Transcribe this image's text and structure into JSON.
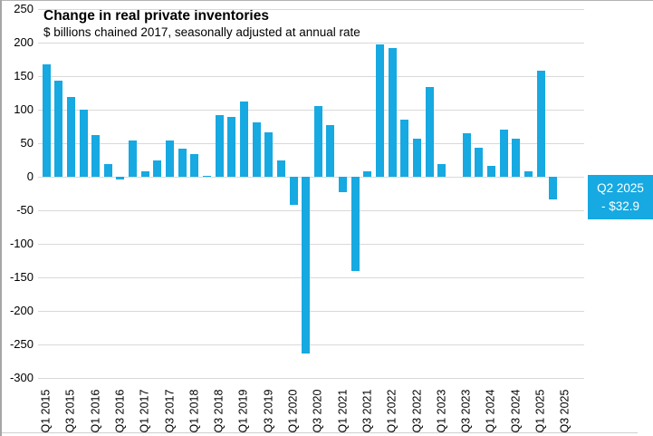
{
  "chart": {
    "title": "Change in real private inventories",
    "subtitle": "$ billions chained 2017, seasonally adjusted at annual rate",
    "callout": {
      "line1": "Q2 2025",
      "line2": "- $32.9"
    }
  },
  "chart_data": {
    "type": "bar",
    "title": "Change in real private inventories",
    "subtitle": "$ billions chained 2017, seasonally adjusted at annual rate",
    "ylabel": "$ billions chained 2017, seasonally adjusted at annual rate",
    "xlabel": "",
    "ylim": [
      -300,
      250
    ],
    "y_ticks": [
      250,
      200,
      150,
      100,
      50,
      0,
      -50,
      -100,
      -150,
      -200,
      -250,
      -300
    ],
    "grid": "horizontal-gridlines-on",
    "legend": "none",
    "bar_color": "#17a9e1",
    "gridline_color": "#d9d9d9",
    "categories": [
      "Q1 2015",
      "Q2 2015",
      "Q3 2015",
      "Q4 2015",
      "Q1 2016",
      "Q2 2016",
      "Q3 2016",
      "Q4 2016",
      "Q1 2017",
      "Q2 2017",
      "Q3 2017",
      "Q4 2017",
      "Q1 2018",
      "Q2 2018",
      "Q3 2018",
      "Q4 2018",
      "Q1 2019",
      "Q2 2019",
      "Q3 2019",
      "Q4 2019",
      "Q1 2020",
      "Q2 2020",
      "Q3 2020",
      "Q4 2020",
      "Q1 2021",
      "Q2 2021",
      "Q3 2021",
      "Q4 2021",
      "Q1 2022",
      "Q2 2022",
      "Q3 2022",
      "Q4 2022",
      "Q1 2023",
      "Q2 2023",
      "Q3 2023",
      "Q4 2023",
      "Q1 2024",
      "Q2 2024",
      "Q3 2024",
      "Q4 2024",
      "Q1 2025",
      "Q2 2025",
      "Q3 2025"
    ],
    "values": [
      168,
      144,
      120,
      100,
      62,
      19,
      -4,
      55,
      8,
      25,
      55,
      42,
      34,
      2,
      93,
      89,
      113,
      82,
      67,
      25,
      -41,
      -263,
      106,
      78,
      -23,
      -140,
      9,
      198,
      193,
      86,
      57,
      134,
      20,
      0,
      66,
      44,
      17,
      71,
      57,
      9,
      159,
      -32.9,
      null
    ],
    "x_tick_labels_shown": [
      "Q1 2015",
      "Q3 2015",
      "Q1 2016",
      "Q3 2016",
      "Q1 2017",
      "Q3 2017",
      "Q1 2018",
      "Q3 2018",
      "Q1 2019",
      "Q3 2019",
      "Q1 2020",
      "Q3 2020",
      "Q1 2021",
      "Q3 2021",
      "Q1 2022",
      "Q3 2022",
      "Q1 2023",
      "Q3 2023",
      "Q1 2024",
      "Q3 2024",
      "Q1 2025",
      "Q3 2025"
    ],
    "annotation": {
      "label": "Q2 2025",
      "value_text": "- $32.9",
      "box_color": "#17a9e1",
      "text_color": "#ffffff",
      "position": "right-edge"
    }
  }
}
